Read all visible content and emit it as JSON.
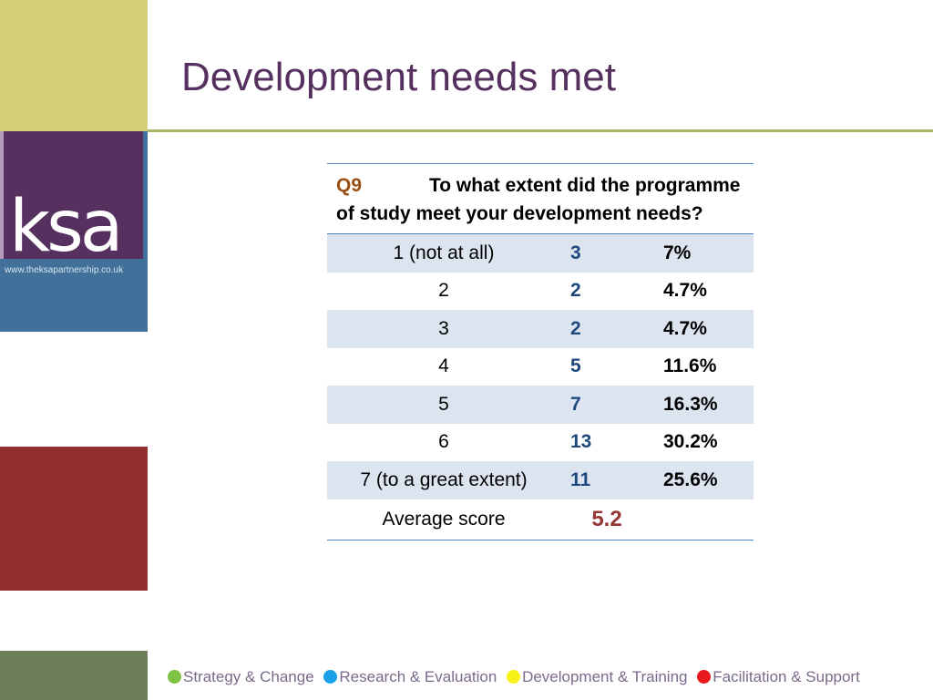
{
  "slide": {
    "title": "Development needs met"
  },
  "logo": {
    "text": "ksa",
    "url": "www.theksapartnership.co.uk"
  },
  "question": {
    "number": "Q9",
    "text": "To what extent did the programme of study meet your development needs?"
  },
  "rows": [
    {
      "label": "1 (not at all)",
      "count": "3",
      "percent": "7%"
    },
    {
      "label": "2",
      "count": "2",
      "percent": "4.7%"
    },
    {
      "label": "3",
      "count": "2",
      "percent": "4.7%"
    },
    {
      "label": "4",
      "count": "5",
      "percent": "11.6%"
    },
    {
      "label": "5",
      "count": "7",
      "percent": "16.3%"
    },
    {
      "label": "6",
      "count": "13",
      "percent": "30.2%"
    },
    {
      "label": "7 (to a great extent)",
      "count": "11",
      "percent": "25.6%"
    }
  ],
  "average": {
    "label": "Average score",
    "value": "5.2"
  },
  "footer": [
    {
      "label": "Strategy & Change",
      "color": "#7dc242"
    },
    {
      "label": "Research & Evaluation",
      "color": "#1aa0e6"
    },
    {
      "label": "Development & Training",
      "color": "#f7f21a"
    },
    {
      "label": "Facilitation & Support",
      "color": "#e8191c"
    }
  ]
}
